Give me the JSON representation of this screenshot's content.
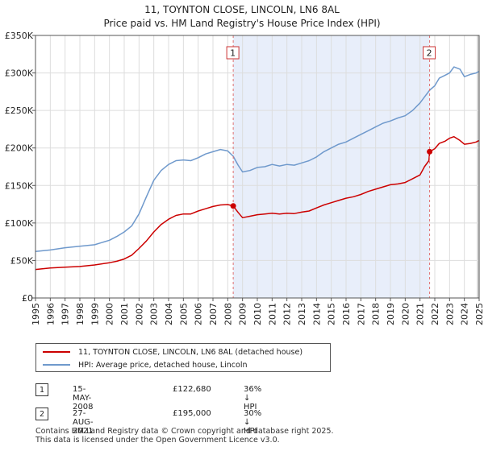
{
  "title_line1": "11, TOYNTON CLOSE, LINCOLN, LN6 8AL",
  "title_line2": "Price paid vs. HM Land Registry's House Price Index (HPI)",
  "chart_data": {
    "type": "line",
    "title": "11, TOYNTON CLOSE, LINCOLN, LN6 8AL — Price paid vs. HM Land Registry's House Price Index (HPI)",
    "xlim": [
      1995,
      2025
    ],
    "ylim": [
      0,
      350000
    ],
    "x_ticks": [
      "1995",
      "1996",
      "1997",
      "1998",
      "1999",
      "2000",
      "2001",
      "2002",
      "2003",
      "2004",
      "2005",
      "2006",
      "2007",
      "2008",
      "2009",
      "2010",
      "2011",
      "2012",
      "2013",
      "2014",
      "2015",
      "2016",
      "2017",
      "2018",
      "2019",
      "2020",
      "2021",
      "2022",
      "2023",
      "2024",
      "2025"
    ],
    "y_ticks": [
      {
        "value": 0,
        "label": "£0"
      },
      {
        "value": 50000,
        "label": "£50K"
      },
      {
        "value": 100000,
        "label": "£100K"
      },
      {
        "value": 150000,
        "label": "£150K"
      },
      {
        "value": 200000,
        "label": "£200K"
      },
      {
        "value": 250000,
        "label": "£250K"
      },
      {
        "value": 300000,
        "label": "£300K"
      },
      {
        "value": 350000,
        "label": "£350K"
      }
    ],
    "shaded_period": [
      2008.37,
      2021.65
    ],
    "series": [
      {
        "name": "HPI: Average price, detached house, Lincoln",
        "color": "#6f99cc",
        "x": [
          1995,
          1996,
          1997,
          1998,
          1999,
          2000,
          2000.5,
          2001,
          2001.5,
          2002,
          2002.5,
          2003,
          2003.5,
          2004,
          2004.5,
          2005,
          2005.5,
          2006,
          2006.5,
          2007,
          2007.5,
          2008,
          2008.37,
          2008.7,
          2009,
          2009.5,
          2010,
          2010.5,
          2011,
          2011.5,
          2012,
          2012.5,
          2013,
          2013.5,
          2014,
          2014.5,
          2015,
          2015.5,
          2016,
          2016.5,
          2017,
          2017.5,
          2018,
          2018.5,
          2019,
          2019.5,
          2020,
          2020.5,
          2021,
          2021.3,
          2021.65,
          2022,
          2022.3,
          2022.7,
          2023,
          2023.3,
          2023.7,
          2024,
          2024.4,
          2024.8,
          2025
        ],
        "values": [
          62000,
          64000,
          67000,
          69000,
          71000,
          77000,
          82000,
          88000,
          96000,
          112000,
          135000,
          157000,
          170000,
          178000,
          183000,
          184000,
          183000,
          187000,
          192000,
          195000,
          198000,
          196000,
          189000,
          177000,
          168000,
          170000,
          174000,
          175000,
          178000,
          176000,
          178000,
          177000,
          180000,
          183000,
          188000,
          195000,
          200000,
          205000,
          208000,
          213000,
          218000,
          223000,
          228000,
          233000,
          236000,
          240000,
          243000,
          250000,
          260000,
          268000,
          277000,
          283000,
          293000,
          297000,
          300000,
          308000,
          305000,
          295000,
          298000,
          300000,
          302000
        ]
      },
      {
        "name": "11, TOYNTON CLOSE, LINCOLN, LN6 8AL (detached house)",
        "color": "#cc0000",
        "x": [
          1995,
          1996,
          1997,
          1998,
          1999,
          2000,
          2000.5,
          2001,
          2001.5,
          2002,
          2002.5,
          2003,
          2003.5,
          2004,
          2004.5,
          2005,
          2005.5,
          2006,
          2006.5,
          2007,
          2007.5,
          2008,
          2008.37,
          2008.7,
          2009,
          2009.5,
          2010,
          2010.5,
          2011,
          2011.5,
          2012,
          2012.5,
          2013,
          2013.5,
          2014,
          2014.5,
          2015,
          2015.5,
          2016,
          2016.5,
          2017,
          2017.5,
          2018,
          2018.5,
          2019,
          2019.5,
          2020,
          2020.5,
          2021,
          2021.3,
          2021.6,
          2021.65,
          2022,
          2022.3,
          2022.7,
          2023,
          2023.3,
          2023.7,
          2024,
          2024.4,
          2024.8,
          2025
        ],
        "values": [
          38000,
          40000,
          41000,
          42000,
          44000,
          47000,
          49000,
          52000,
          57000,
          66000,
          76000,
          88000,
          98000,
          105000,
          110000,
          112000,
          112000,
          116000,
          119000,
          122000,
          124000,
          124500,
          122680,
          114000,
          107000,
          109000,
          111000,
          112000,
          113000,
          112000,
          113000,
          112500,
          114500,
          116000,
          120000,
          124000,
          127000,
          130000,
          133000,
          135000,
          138000,
          142000,
          145000,
          148000,
          151000,
          152000,
          154000,
          159000,
          164000,
          175000,
          183000,
          195000,
          199000,
          206000,
          209000,
          213000,
          215000,
          210000,
          205000,
          206000,
          208000,
          210000
        ]
      }
    ],
    "annotations": [
      {
        "id": "1",
        "x": 2008.37,
        "y": 122680
      },
      {
        "id": "2",
        "x": 2021.65,
        "y": 195000
      }
    ]
  },
  "legend": {
    "items": [
      {
        "label": "11, TOYNTON CLOSE, LINCOLN, LN6 8AL (detached house)",
        "color": "#cc0000"
      },
      {
        "label": "HPI: Average price, detached house, Lincoln",
        "color": "#6f99cc"
      }
    ]
  },
  "sales": [
    {
      "id": "1",
      "date": "15-MAY-2008",
      "price": "£122,680",
      "hpi": "36% ↓ HPI"
    },
    {
      "id": "2",
      "date": "27-AUG-2021",
      "price": "£195,000",
      "hpi": "30% ↓ HPI"
    }
  ],
  "footer": {
    "line1": "Contains HM Land Registry data © Crown copyright and database right 2025.",
    "line2": "This data is licensed under the Open Government Licence v3.0."
  }
}
